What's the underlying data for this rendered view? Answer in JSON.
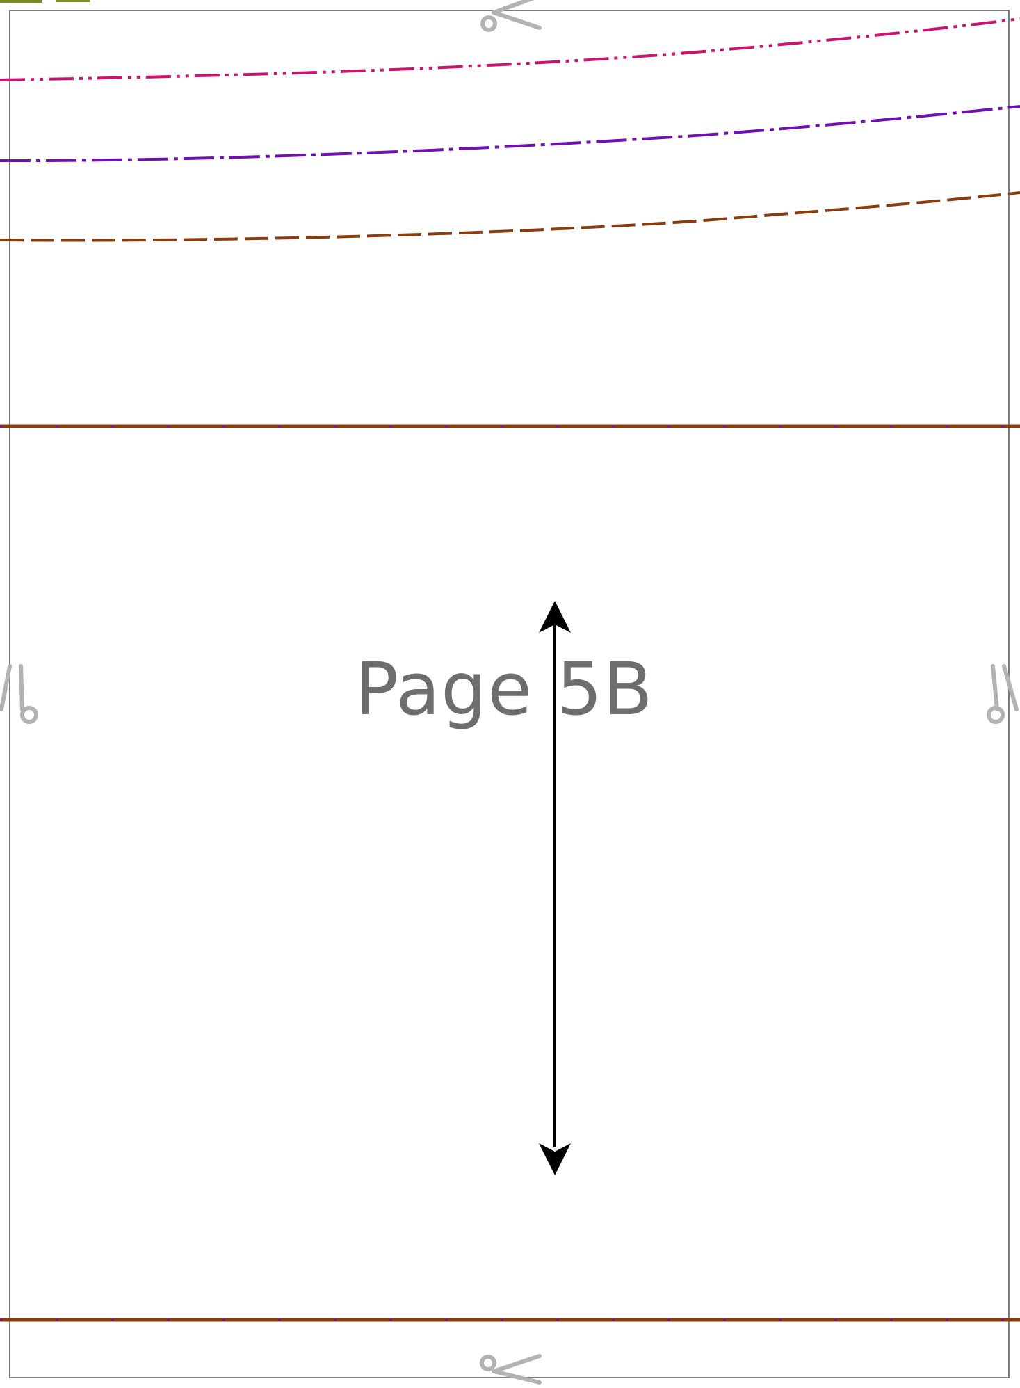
{
  "page": {
    "label": "Page 5B"
  },
  "colors": {
    "background": "#ffffff",
    "frame": "#7a7a7a",
    "scissors": "#b3b3b3",
    "label": "#6e6e6e",
    "grainline": "#000000",
    "line_magenta": "#c8146e",
    "line_purple": "#7010b0",
    "line_brown": "#8a3c10",
    "line_olive": "#7a8a20"
  },
  "pattern_lines": [
    {
      "name": "size-line-magenta",
      "style": "dash-dot-dot",
      "color": "#c8146e"
    },
    {
      "name": "size-line-purple",
      "style": "dash-dot",
      "color": "#7010b0"
    },
    {
      "name": "size-line-brown",
      "style": "dashed",
      "color": "#8a3c10"
    }
  ],
  "icons": {
    "cut_marker": "scissors-icon",
    "grainline": "double-arrow-icon"
  }
}
